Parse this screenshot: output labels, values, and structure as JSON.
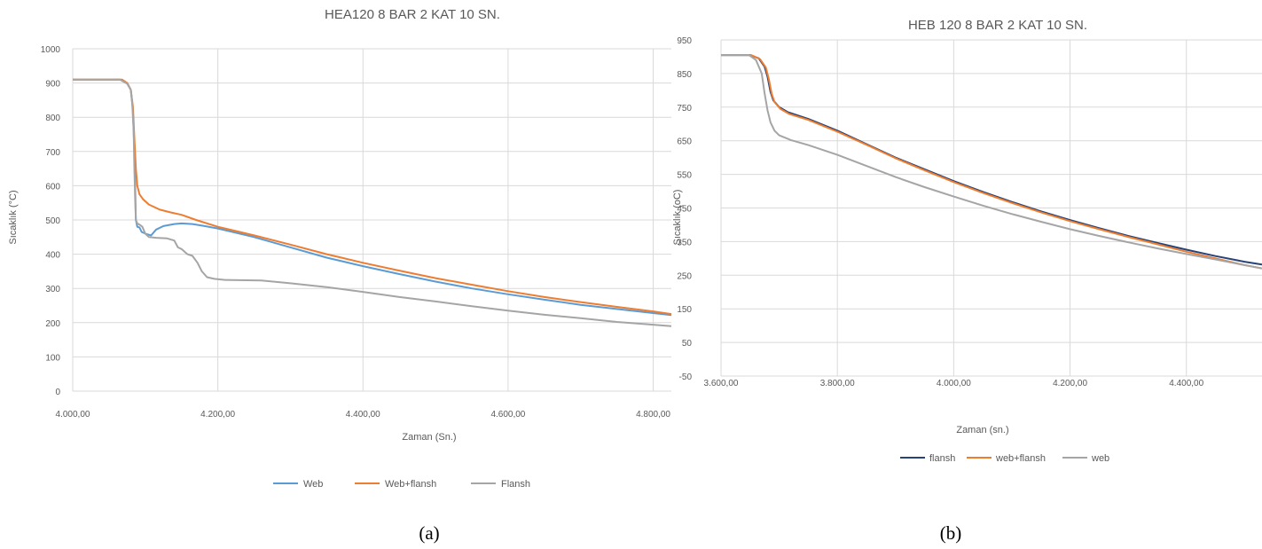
{
  "chart_data": [
    {
      "type": "line",
      "title": "HEA120 8 BAR 2 KAT 10 SN.",
      "xlabel": "Zaman (Sn.)",
      "ylabel": "Sıcaklık (°C)",
      "xlim": [
        4000,
        4825
      ],
      "ylim": [
        0,
        1000
      ],
      "x_ticks": [
        4000,
        4200,
        4400,
        4600,
        4800
      ],
      "x_tick_labels": [
        "4.000,00",
        "4.200,00",
        "4.400,00",
        "4.600,00",
        "4.800,00"
      ],
      "y_ticks": [
        0,
        100,
        200,
        300,
        400,
        500,
        600,
        700,
        800,
        900,
        1000
      ],
      "y_tick_labels": [
        "0",
        "100",
        "200",
        "300",
        "400",
        "500",
        "600",
        "700",
        "800",
        "900",
        "1000"
      ],
      "grid": true,
      "legend_position": "bottom",
      "series": [
        {
          "name": "Web",
          "color": "#5b9bd5",
          "points": [
            [
              4000,
              910
            ],
            [
              4065,
              910
            ],
            [
              4075,
              900
            ],
            [
              4080,
              880
            ],
            [
              4083,
              820
            ],
            [
              4085,
              700
            ],
            [
              4086,
              600
            ],
            [
              4087,
              500
            ],
            [
              4089,
              480
            ],
            [
              4092,
              478
            ],
            [
              4095,
              465
            ],
            [
              4100,
              460
            ],
            [
              4108,
              455
            ],
            [
              4115,
              472
            ],
            [
              4125,
              482
            ],
            [
              4140,
              488
            ],
            [
              4150,
              490
            ],
            [
              4165,
              488
            ],
            [
              4180,
              483
            ],
            [
              4200,
              475
            ],
            [
              4250,
              450
            ],
            [
              4300,
              420
            ],
            [
              4350,
              390
            ],
            [
              4400,
              365
            ],
            [
              4450,
              342
            ],
            [
              4500,
              320
            ],
            [
              4550,
              300
            ],
            [
              4600,
              283
            ],
            [
              4650,
              267
            ],
            [
              4700,
              252
            ],
            [
              4750,
              240
            ],
            [
              4800,
              228
            ],
            [
              4825,
              222
            ]
          ]
        },
        {
          "name": "Web+flansh",
          "color": "#ed7d31",
          "points": [
            [
              4000,
              910
            ],
            [
              4068,
              910
            ],
            [
              4075,
              900
            ],
            [
              4080,
              880
            ],
            [
              4083,
              830
            ],
            [
              4085,
              740
            ],
            [
              4087,
              650
            ],
            [
              4089,
              600
            ],
            [
              4092,
              575
            ],
            [
              4097,
              560
            ],
            [
              4105,
              545
            ],
            [
              4120,
              530
            ],
            [
              4135,
              522
            ],
            [
              4150,
              515
            ],
            [
              4170,
              500
            ],
            [
              4200,
              480
            ],
            [
              4250,
              455
            ],
            [
              4300,
              428
            ],
            [
              4350,
              400
            ],
            [
              4400,
              375
            ],
            [
              4450,
              352
            ],
            [
              4500,
              330
            ],
            [
              4550,
              311
            ],
            [
              4600,
              292
            ],
            [
              4650,
              275
            ],
            [
              4700,
              260
            ],
            [
              4750,
              246
            ],
            [
              4800,
              233
            ],
            [
              4825,
              225
            ]
          ]
        },
        {
          "name": "Flansh",
          "color": "#a5a5a5",
          "points": [
            [
              4000,
              910
            ],
            [
              4065,
              910
            ],
            [
              4075,
              898
            ],
            [
              4080,
              880
            ],
            [
              4082,
              840
            ],
            [
              4084,
              760
            ],
            [
              4085,
              650
            ],
            [
              4086,
              560
            ],
            [
              4087,
              500
            ],
            [
              4089,
              490
            ],
            [
              4093,
              485
            ],
            [
              4096,
              480
            ],
            [
              4100,
              460
            ],
            [
              4105,
              450
            ],
            [
              4115,
              448
            ],
            [
              4130,
              446
            ],
            [
              4140,
              440
            ],
            [
              4145,
              420
            ],
            [
              4150,
              415
            ],
            [
              4158,
              400
            ],
            [
              4165,
              395
            ],
            [
              4172,
              375
            ],
            [
              4178,
              350
            ],
            [
              4185,
              333
            ],
            [
              4195,
              328
            ],
            [
              4210,
              325
            ],
            [
              4230,
              324
            ],
            [
              4260,
              323
            ],
            [
              4300,
              315
            ],
            [
              4350,
              304
            ],
            [
              4400,
              290
            ],
            [
              4450,
              275
            ],
            [
              4500,
              262
            ],
            [
              4550,
              248
            ],
            [
              4600,
              235
            ],
            [
              4650,
              223
            ],
            [
              4700,
              213
            ],
            [
              4750,
              202
            ],
            [
              4800,
              194
            ],
            [
              4825,
              190
            ]
          ]
        }
      ]
    },
    {
      "type": "line",
      "title": "HEB 120 8 BAR 2 KAT 10 SN.",
      "xlabel": "Zaman (sn.)",
      "ylabel": "Sıcaklık (oC)",
      "xlim": [
        3600,
        4530
      ],
      "ylim": [
        -50,
        950
      ],
      "x_ticks": [
        3600,
        3800,
        4000,
        4200,
        4400
      ],
      "x_tick_labels": [
        "3.600,00",
        "3.800,00",
        "4.000,00",
        "4.200,00",
        "4.400,00"
      ],
      "y_ticks": [
        -50,
        50,
        150,
        250,
        350,
        450,
        550,
        650,
        750,
        850,
        950
      ],
      "y_tick_labels": [
        "-50",
        "50",
        "150",
        "250",
        "350",
        "450",
        "550",
        "650",
        "750",
        "850",
        "950"
      ],
      "grid": true,
      "legend_position": "bottom",
      "series": [
        {
          "name": "flansh",
          "color": "#264478",
          "points": [
            [
              3600,
              905
            ],
            [
              3650,
              905
            ],
            [
              3665,
              895
            ],
            [
              3675,
              870
            ],
            [
              3680,
              840
            ],
            [
              3685,
              795
            ],
            [
              3690,
              770
            ],
            [
              3700,
              750
            ],
            [
              3715,
              735
            ],
            [
              3750,
              715
            ],
            [
              3800,
              680
            ],
            [
              3850,
              640
            ],
            [
              3900,
              600
            ],
            [
              3950,
              565
            ],
            [
              4000,
              530
            ],
            [
              4050,
              498
            ],
            [
              4100,
              468
            ],
            [
              4150,
              440
            ],
            [
              4200,
              414
            ],
            [
              4250,
              390
            ],
            [
              4300,
              367
            ],
            [
              4350,
              346
            ],
            [
              4400,
              326
            ],
            [
              4450,
              307
            ],
            [
              4500,
              290
            ],
            [
              4530,
              282
            ]
          ]
        },
        {
          "name": "web+flansh",
          "color": "#ed7d31",
          "points": [
            [
              3600,
              905
            ],
            [
              3652,
              905
            ],
            [
              3667,
              893
            ],
            [
              3677,
              868
            ],
            [
              3682,
              835
            ],
            [
              3687,
              790
            ],
            [
              3692,
              765
            ],
            [
              3702,
              745
            ],
            [
              3717,
              730
            ],
            [
              3750,
              712
            ],
            [
              3800,
              677
            ],
            [
              3850,
              638
            ],
            [
              3900,
              598
            ],
            [
              3950,
              562
            ],
            [
              4000,
              527
            ],
            [
              4050,
              495
            ],
            [
              4100,
              465
            ],
            [
              4150,
              437
            ],
            [
              4200,
              411
            ],
            [
              4250,
              387
            ],
            [
              4300,
              364
            ],
            [
              4350,
              342
            ],
            [
              4400,
              320
            ],
            [
              4450,
              300
            ],
            [
              4500,
              280
            ],
            [
              4530,
              270
            ]
          ]
        },
        {
          "name": "web",
          "color": "#a5a5a5",
          "points": [
            [
              3600,
              905
            ],
            [
              3648,
              905
            ],
            [
              3660,
              890
            ],
            [
              3670,
              850
            ],
            [
              3675,
              790
            ],
            [
              3680,
              740
            ],
            [
              3685,
              705
            ],
            [
              3692,
              680
            ],
            [
              3700,
              666
            ],
            [
              3720,
              652
            ],
            [
              3750,
              637
            ],
            [
              3800,
              608
            ],
            [
              3850,
              575
            ],
            [
              3900,
              542
            ],
            [
              3950,
              512
            ],
            [
              4000,
              484
            ],
            [
              4050,
              457
            ],
            [
              4100,
              432
            ],
            [
              4150,
              409
            ],
            [
              4200,
              387
            ],
            [
              4250,
              367
            ],
            [
              4300,
              348
            ],
            [
              4350,
              330
            ],
            [
              4400,
              313
            ],
            [
              4450,
              297
            ],
            [
              4500,
              280
            ],
            [
              4530,
              270
            ]
          ]
        }
      ]
    }
  ],
  "captions": [
    "(a)",
    "(b)"
  ]
}
